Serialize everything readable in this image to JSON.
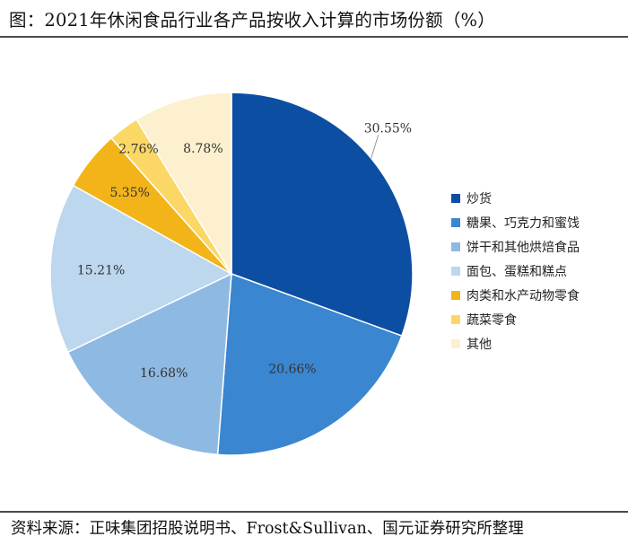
{
  "title": "图：2021年休闲食品行业各产品按收入计算的市场份额（%）",
  "source": "资料来源：正味集团招股说明书、Frost&Sullivan、国元证券研究所整理",
  "chart_data": {
    "type": "pie",
    "title": "图：2021年休闲食品行业各产品按收入计算的市场份额（%）",
    "unit": "%",
    "legend_position": "right",
    "start_angle": "12 o'clock",
    "direction": "clockwise",
    "slices": [
      {
        "name": "炒货",
        "value": 30.55,
        "label": "30.55%",
        "color": "#0c4ea2"
      },
      {
        "name": "糖果、巧克力和蜜饯",
        "value": 20.66,
        "label": "20.66%",
        "color": "#3a86d0"
      },
      {
        "name": "饼干和其他烘焙食品",
        "value": 16.68,
        "label": "16.68%",
        "color": "#8eb9e2"
      },
      {
        "name": "面包、蛋糕和糕点",
        "value": 15.21,
        "label": "15.21%",
        "color": "#bcd7ee"
      },
      {
        "name": "肉类和水产动物零食",
        "value": 5.35,
        "label": "5.35%",
        "color": "#f2b418"
      },
      {
        "name": "蔬菜零食",
        "value": 2.76,
        "label": "2.76%",
        "color": "#fbd766"
      },
      {
        "name": "其他",
        "value": 8.78,
        "label": "8.78%",
        "color": "#fdf0cf"
      }
    ]
  }
}
